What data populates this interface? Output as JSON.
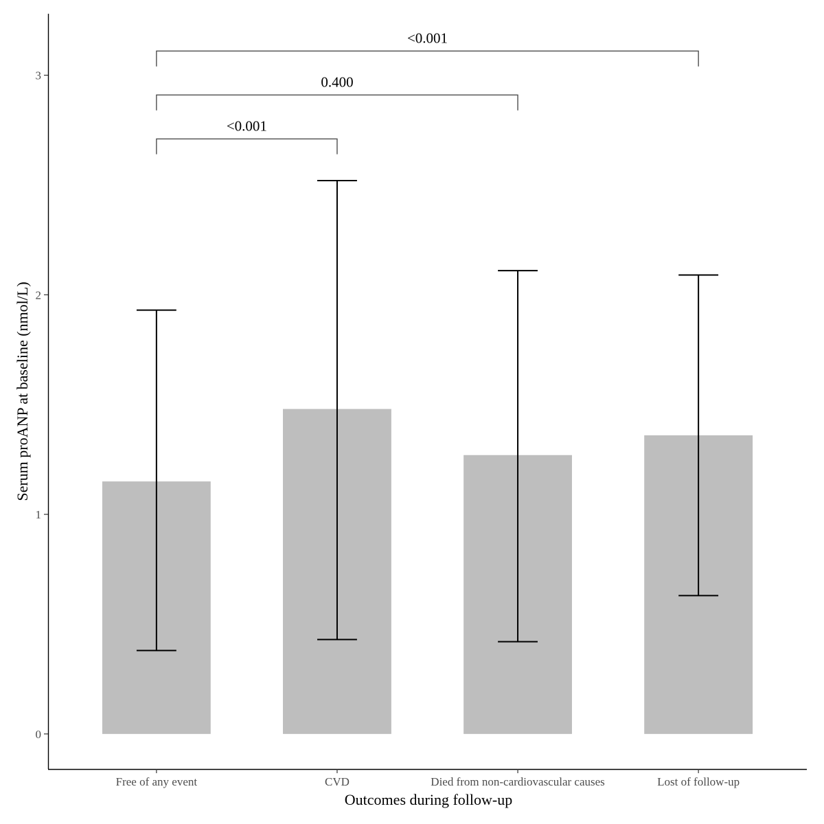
{
  "chart_data": {
    "type": "bar",
    "title": "",
    "xlabel": "Outcomes during follow-up",
    "ylabel": "Serum proANP at baseline (nmol/L)",
    "ylim": [
      -0.16,
      3.28
    ],
    "yticks": [
      0,
      1,
      2,
      3
    ],
    "ytick_labels": [
      "0",
      "1",
      "2",
      "3"
    ],
    "categories": [
      "Free of any event",
      "CVD",
      "Died from non-cardiovascular causes",
      "Lost of follow-up"
    ],
    "values": [
      1.15,
      1.48,
      1.27,
      1.36
    ],
    "error_low": [
      0.38,
      0.43,
      0.42,
      0.63
    ],
    "error_high": [
      1.93,
      2.52,
      2.11,
      2.09
    ],
    "comparisons": [
      {
        "from": 0,
        "to": 1,
        "label": "<0.001",
        "y": 2.71,
        "tip": 2.64
      },
      {
        "from": 0,
        "to": 2,
        "label": "0.400",
        "y": 2.91,
        "tip": 2.84
      },
      {
        "from": 0,
        "to": 3,
        "label": "<0.001",
        "y": 3.11,
        "tip": 3.04
      }
    ],
    "colors": {
      "bar": "#bebebe",
      "line": "#000000",
      "bracket": "#4d4d4d"
    }
  }
}
